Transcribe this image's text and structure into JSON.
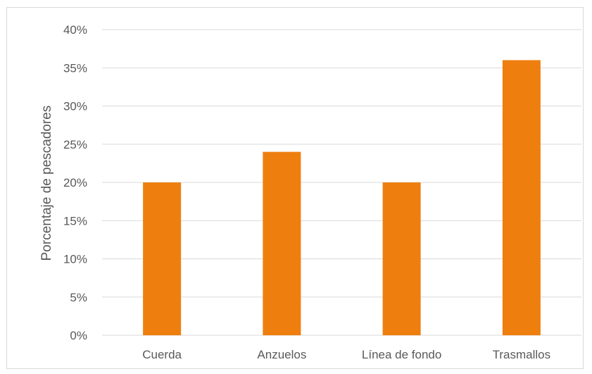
{
  "chart_data": {
    "type": "bar",
    "categories": [
      "Cuerda",
      "Anzuelos",
      "Línea de fondo",
      "Trasmallos"
    ],
    "values": [
      20,
      24,
      20,
      36
    ],
    "ylabel": "Porcentaje de pescadores",
    "ylim": [
      0,
      40
    ],
    "y_ticks": [
      "0%",
      "5%",
      "10%",
      "15%",
      "20%",
      "25%",
      "30%",
      "35%",
      "40%"
    ],
    "grid": true,
    "legend": "none",
    "bar_color": "#EE7F0F",
    "grid_color": "#d9d9d9"
  }
}
